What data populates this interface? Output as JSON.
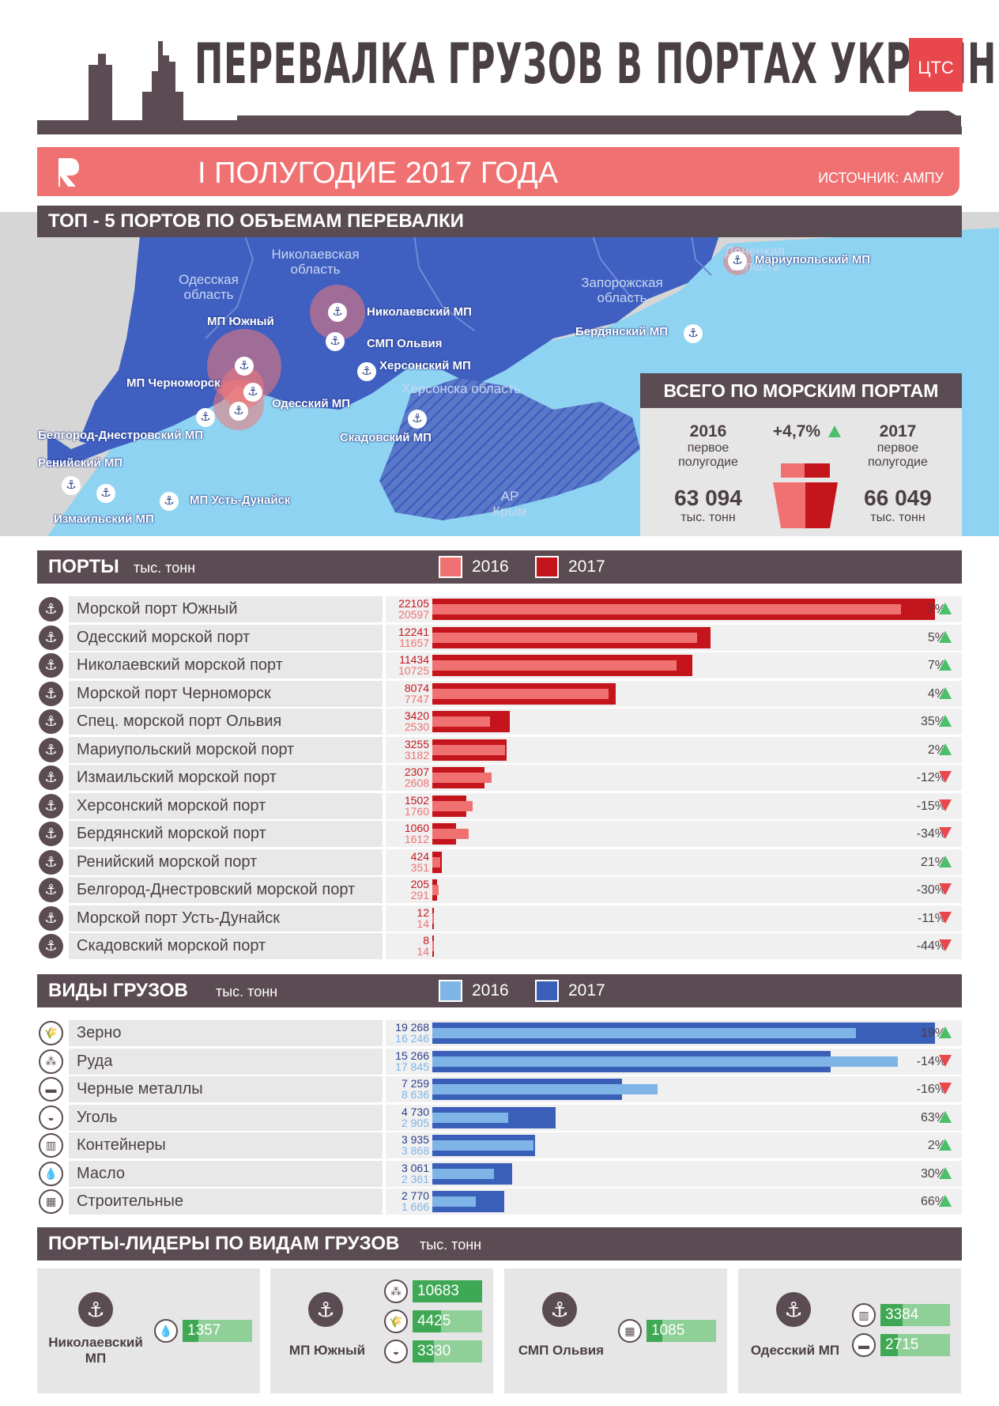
{
  "header": {
    "title": "ПЕРЕВАЛКА ГРУЗОВ В ПОРТАХ УКРАИНЫ",
    "logo": "ЦТС",
    "period": "I ПОЛУГОДИЕ 2017 ГОДА",
    "source": "ИСТОЧНИК: АМПУ"
  },
  "colors": {
    "dark": "#5b4c53",
    "red2016": "#f07171",
    "red2017": "#c4151c",
    "blue2016": "#7fb4e6",
    "blue2017": "#3a5fb8",
    "sea": "#8fd3f2",
    "land": "#3f5fc1",
    "green": "#3fa854"
  },
  "map": {
    "title": "ТОП - 5 ПОРТОВ ПО ОБЪЕМАМ ПЕРЕВАЛКИ",
    "regions": [
      "Одесская область",
      "Николаевская область",
      "Запорожская область",
      "Донецкая область",
      "Херсонска область",
      "АР Крым"
    ],
    "ports": [
      "Мариупольский МП",
      "Николаевский МП",
      "МП Южный",
      "СМП Ольвия",
      "Херсонский МП",
      "Бердянский МП",
      "МП Черноморск",
      "Одесский МП",
      "Белгород-Днестровский МП",
      "Скадовский МП",
      "Ренийский МП",
      "Измаильский МП",
      "МП Усть-Дунайск"
    ]
  },
  "totals": {
    "title": "ВСЕГО ПО МОРСКИМ ПОРТАМ",
    "change": "+4,7%",
    "y2016": {
      "year": "2016",
      "label": "первое полугодие",
      "value": "63 094",
      "unit": "тыс. тонн"
    },
    "y2017": {
      "year": "2017",
      "label": "первое полугодие",
      "value": "66 049",
      "unit": "тыс. тонн"
    }
  },
  "ports_section": {
    "title": "ПОРТЫ",
    "unit": "тыс. тонн",
    "legend": [
      "2016",
      "2017"
    ]
  },
  "cargo_section": {
    "title": "ВИДЫ ГРУЗОВ",
    "unit": "тыс. тонн",
    "legend": [
      "2016",
      "2017"
    ]
  },
  "leaders_section": {
    "title": "ПОРТЫ-ЛИДЕРЫ ПО ВИДАМ ГРУЗОВ",
    "unit": "тыс. тонн"
  },
  "chart_data": [
    {
      "type": "bar",
      "title": "ПОРТЫ",
      "unit": "тыс. тонн",
      "categories": [
        "Морской порт Южный",
        "Одесский морской порт",
        "Николаевский морской порт",
        "Морской порт Черноморск",
        "Спец. морской порт Ольвия",
        "Мариупольский морской порт",
        "Измаильский морской порт",
        "Херсонский морской порт",
        "Бердянский морской порт",
        "Ренийский морской порт",
        "Белгород-Днестровский морской порт",
        "Морской порт Усть-Дунайск",
        "Скадовский морской порт"
      ],
      "series": [
        {
          "name": "2017",
          "values": [
            22105,
            12241,
            11434,
            8074,
            3420,
            3255,
            2307,
            1502,
            1060,
            424,
            205,
            12,
            8
          ],
          "labels": [
            "22105",
            "12241",
            "11434",
            "8074",
            "3420",
            "3255",
            "2307",
            "1502",
            "1060",
            "424",
            "205",
            "12",
            "8"
          ]
        },
        {
          "name": "2016",
          "values": [
            20597,
            11657,
            10725,
            7747,
            2530,
            3182,
            2608,
            1760,
            1612,
            351,
            291,
            14,
            14
          ],
          "labels": [
            "20597",
            "11657",
            "10725",
            "7747",
            "2530",
            "3182",
            "2608",
            "1760",
            "1612",
            "351",
            "291",
            "14",
            "14"
          ]
        }
      ],
      "change": [
        "7%",
        "5%",
        "7%",
        "4%",
        "35%",
        "2%",
        "-12%",
        "-15%",
        "-34%",
        "21%",
        "-30%",
        "-11%",
        "-44%"
      ],
      "direction": [
        "up",
        "up",
        "up",
        "up",
        "up",
        "up",
        "down",
        "down",
        "down",
        "up",
        "down",
        "down",
        "down"
      ],
      "xlim": [
        0,
        22105
      ]
    },
    {
      "type": "bar",
      "title": "ВИДЫ ГРУЗОВ",
      "unit": "тыс. тонн",
      "categories": [
        "Зерно",
        "Руда",
        "Черные металлы",
        "Уголь",
        "Контейнеры",
        "Масло",
        "Строительные"
      ],
      "icons": [
        "grain-icon",
        "ore-icon",
        "metal-icon",
        "coal-icon",
        "container-icon",
        "oil-icon",
        "bricks-icon"
      ],
      "series": [
        {
          "name": "2017",
          "values": [
            19268,
            15266,
            7259,
            4730,
            3935,
            3061,
            2770
          ],
          "labels": [
            "19 268",
            "15 266",
            "7 259",
            "4 730",
            "3 935",
            "3 061",
            "2 770"
          ]
        },
        {
          "name": "2016",
          "values": [
            16246,
            17845,
            8636,
            2905,
            3868,
            2361,
            1666
          ],
          "labels": [
            "16 246",
            "17 845",
            "8 636",
            "2 905",
            "3 868",
            "2 361",
            "1 666"
          ]
        }
      ],
      "change": [
        "19%",
        "-14%",
        "-16%",
        "63%",
        "2%",
        "30%",
        "66%"
      ],
      "direction": [
        "up",
        "down",
        "down",
        "up",
        "up",
        "up",
        "up"
      ],
      "xlim": [
        0,
        19268
      ]
    }
  ],
  "leaders": [
    {
      "port": "Николаевский МП",
      "items": [
        {
          "icon": "oil-icon",
          "value": 1357,
          "label": "1357"
        }
      ]
    },
    {
      "port": "МП Южный",
      "items": [
        {
          "icon": "ore-icon",
          "value": 10683,
          "label": "10683"
        },
        {
          "icon": "grain-icon",
          "value": 4425,
          "label": "4425"
        },
        {
          "icon": "coal-icon",
          "value": 3330,
          "label": "3330"
        }
      ]
    },
    {
      "port": "СМП Ольвия",
      "items": [
        {
          "icon": "bricks-icon",
          "value": 1085,
          "label": "1085"
        }
      ]
    },
    {
      "port": "Одесский МП",
      "items": [
        {
          "icon": "container-icon",
          "value": 3384,
          "label": "3384"
        },
        {
          "icon": "metal-icon",
          "value": 2715,
          "label": "2715"
        }
      ]
    }
  ]
}
